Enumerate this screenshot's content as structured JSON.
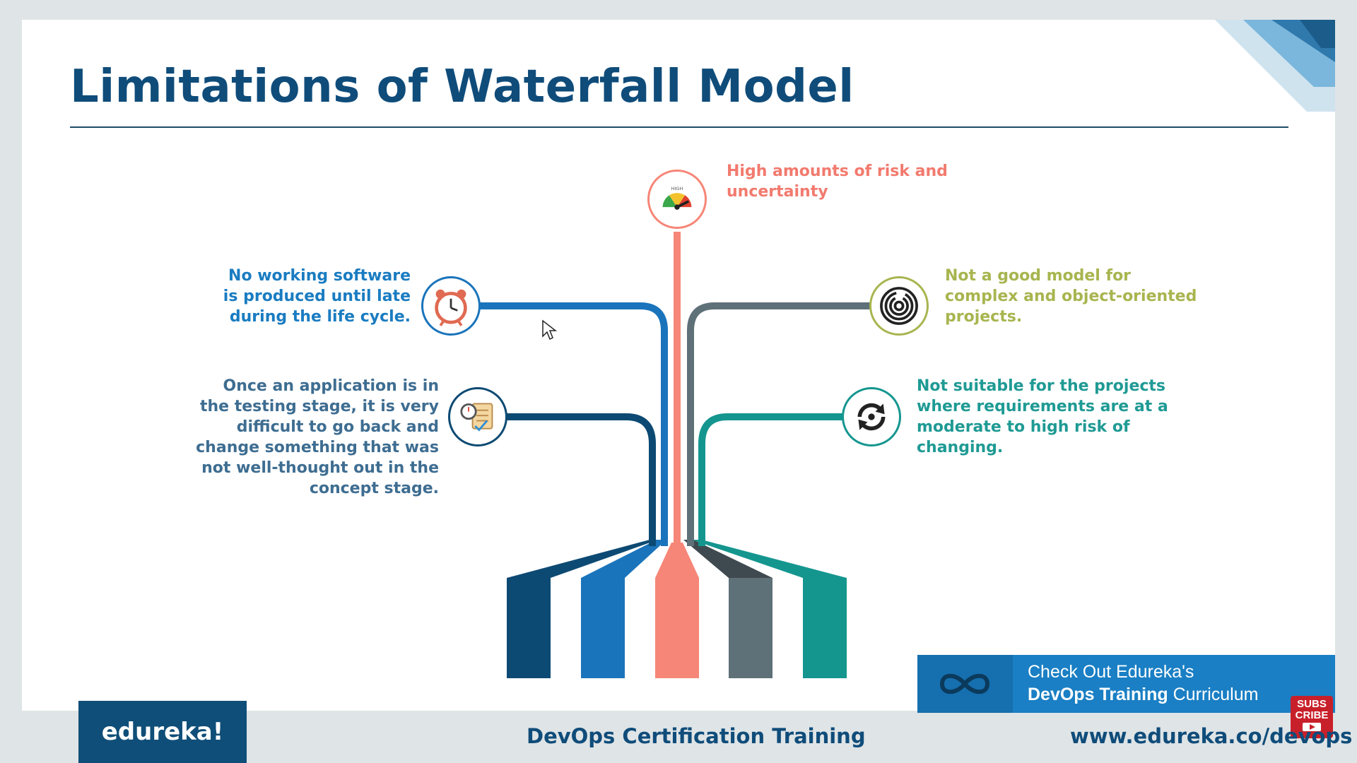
{
  "slide": {
    "title": "Limitations of Waterfall Model"
  },
  "items": [
    {
      "text": "High amounts of risk and uncertainty",
      "icon": "gauge-high-icon",
      "color": "#f27a6e"
    },
    {
      "text": "No working software is produced until late during the life cycle.",
      "icon": "alarm-clock-icon",
      "color": "#1a7cc1"
    },
    {
      "text": "Once an application is in the testing stage, it is very difficult to go back and change something that was not well-thought out in the concept stage.",
      "icon": "stopwatch-checklist-icon",
      "color": "#3e6d91"
    },
    {
      "text": "Not a good model for complex and object-oriented projects.",
      "icon": "maze-icon",
      "color": "#a8b54f"
    },
    {
      "text": "Not suitable for the projects where requirements are at a moderate to high risk of changing.",
      "icon": "refresh-cycle-icon",
      "color": "#1f9a94"
    }
  ],
  "bar_colors": [
    "#0d4a73",
    "#1a74bb",
    "#f68677",
    "#5e7078",
    "#14968f"
  ],
  "banner": {
    "line1": "Check Out Edureka's",
    "line2_bold": "DevOps Training",
    "line2_rest": " Curriculum"
  },
  "subscribe": {
    "line1": "SUBS",
    "line2": "CRIBE"
  },
  "footer": {
    "logo": "edureka!",
    "center": "DevOps Certification Training",
    "url": "www.edureka.co/devops"
  }
}
